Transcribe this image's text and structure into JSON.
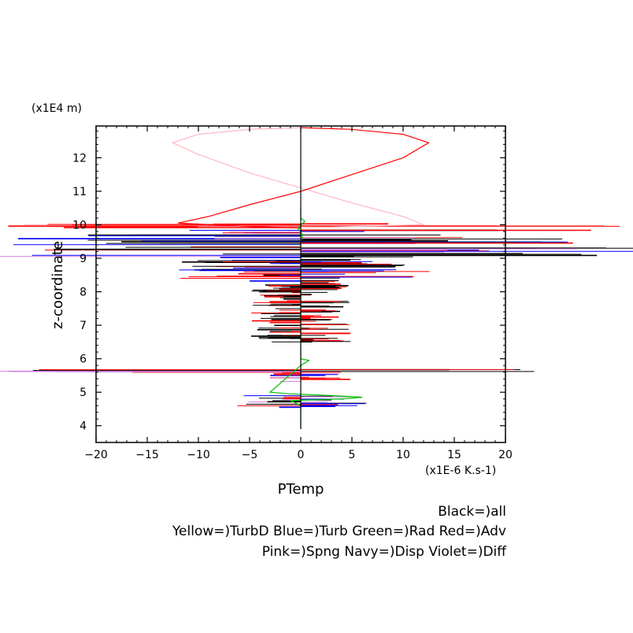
{
  "chart_data": {
    "type": "line",
    "xlabel": "PTemp",
    "ylabel": "z-coordinate",
    "x_unit": "(x1E-6 K.s-1)",
    "y_unit": "(x1E4 m)",
    "xlim": [
      -20,
      20
    ],
    "ylim": [
      3.5,
      12.95
    ],
    "x_ticks": [
      -20,
      -15,
      -10,
      -5,
      0,
      5,
      10,
      15,
      20
    ],
    "y_ticks": [
      4,
      5,
      6,
      7,
      8,
      9,
      10,
      11,
      12
    ],
    "x_tick_labels": [
      "−20",
      "−15",
      "−10",
      "−5",
      "0",
      "5",
      "10",
      "15",
      "20"
    ],
    "y_tick_labels": [
      "4",
      "5",
      "6",
      "7",
      "8",
      "9",
      "10",
      "11",
      "12"
    ],
    "legend": [
      "Black=)all",
      "Yellow=)TurbD Blue=)Turb Green=)Rad Red=)Adv",
      "Pink=)Spng Navy=)Disp Violet=)Diff"
    ],
    "colors": {
      "all": "#000000",
      "TurbD": "#ffff00",
      "Turb": "#0000ff",
      "Rad": "#00c000",
      "Adv": "#ff0000",
      "Spng": "#ffb6c1",
      "Disp": "#000080",
      "Diff": "#d080e0"
    },
    "series": [
      {
        "name": "Spng",
        "color": "#ffb6c1",
        "points": [
          [
            0,
            12.9
          ],
          [
            -5,
            12.85
          ],
          [
            -10,
            12.7
          ],
          [
            -12.5,
            12.45
          ],
          [
            -10,
            12.1
          ],
          [
            -5,
            11.55
          ],
          [
            0,
            11.1
          ],
          [
            5,
            10.65
          ],
          [
            10,
            10.25
          ],
          [
            12,
            10.0
          ],
          [
            5,
            9.95
          ],
          [
            0,
            9.9
          ]
        ]
      },
      {
        "name": "Adv",
        "color": "#ff0000",
        "points": [
          [
            0,
            12.9
          ],
          [
            5,
            12.85
          ],
          [
            10,
            12.7
          ],
          [
            12.5,
            12.45
          ],
          [
            10,
            12.0
          ],
          [
            5,
            11.5
          ],
          [
            0,
            11.0
          ],
          [
            -5,
            10.6
          ],
          [
            -9,
            10.25
          ],
          [
            -12,
            10.05
          ],
          [
            -5,
            9.95
          ],
          [
            0,
            9.9
          ]
        ]
      },
      {
        "name": "Rad",
        "color": "#00c000",
        "points": [
          [
            0,
            10.5
          ],
          [
            0,
            10.2
          ],
          [
            0.4,
            10.1
          ],
          [
            -0.3,
            9.9
          ],
          [
            0.2,
            9.7
          ],
          [
            0,
            9.5
          ],
          [
            0,
            6.0
          ],
          [
            0.8,
            5.95
          ],
          [
            0,
            5.8
          ],
          [
            -3,
            5.0
          ],
          [
            -1,
            4.95
          ],
          [
            3,
            4.9
          ],
          [
            6,
            4.85
          ],
          [
            4,
            4.8
          ],
          [
            -1,
            4.75
          ],
          [
            0,
            4.6
          ],
          [
            0,
            3.9
          ]
        ]
      },
      {
        "name": "all",
        "color": "#000000",
        "points": [
          [
            0,
            12.9
          ],
          [
            0,
            10.0
          ],
          [
            0,
            6.2
          ],
          [
            0,
            3.9
          ]
        ]
      }
    ],
    "spike_bands": [
      {
        "z_range": [
          9.9,
          10.05
        ],
        "x_range": [
          -30,
          35
        ],
        "colors": [
          "#ff0000",
          "#ff0000",
          "#ffb6c1"
        ]
      },
      {
        "z_range": [
          9.05,
          9.85
        ],
        "x_range": [
          -30,
          35
        ],
        "colors": [
          "#000000",
          "#ff0000",
          "#0000ff",
          "#000000",
          "#d080e0"
        ]
      },
      {
        "z_range": [
          8.3,
          9.05
        ],
        "x_range": [
          -12,
          13
        ],
        "colors": [
          "#000000",
          "#ff0000",
          "#0000ff"
        ]
      },
      {
        "z_range": [
          6.5,
          8.3
        ],
        "x_range": [
          -5,
          5
        ],
        "colors": [
          "#000000",
          "#ff0000"
        ]
      },
      {
        "z_range": [
          5.6,
          5.68
        ],
        "x_range": [
          -30,
          28
        ],
        "colors": [
          "#000000",
          "#ff0000",
          "#d080e0",
          "#d080e0"
        ]
      },
      {
        "z_range": [
          5.3,
          5.6
        ],
        "x_range": [
          -3,
          5
        ],
        "colors": [
          "#ff0000",
          "#0000ff",
          "#d080e0"
        ]
      },
      {
        "z_range": [
          4.55,
          4.9
        ],
        "x_range": [
          -7,
          7
        ],
        "colors": [
          "#ff0000",
          "#0000ff",
          "#d080e0",
          "#000000"
        ]
      }
    ]
  }
}
